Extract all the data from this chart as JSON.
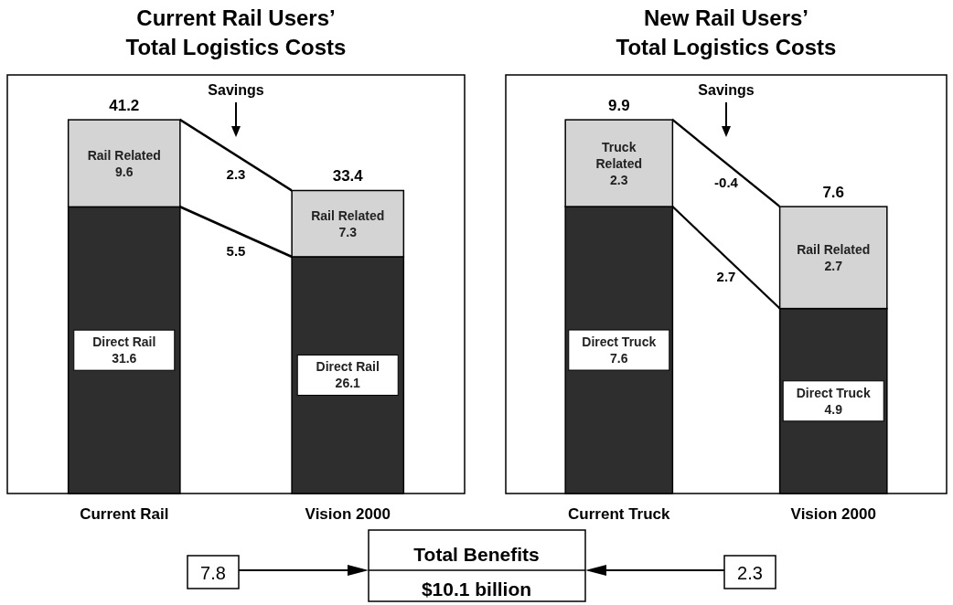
{
  "chart_data": [
    {
      "type": "bar",
      "stacked": true,
      "data_labels": true,
      "title": "Current Rail Users’\nTotal Logistics Costs",
      "categories": [
        "Current Rail",
        "Vision 2000"
      ],
      "series": [
        {
          "name": "Direct Rail",
          "color": "#2e2e2e",
          "values": [
            31.6,
            26.1
          ]
        },
        {
          "name": "Rail Related",
          "color": "#d4d4d4",
          "values": [
            9.6,
            7.3
          ]
        }
      ],
      "totals": [
        "41.2",
        "33.4"
      ],
      "annotations": [
        "Savings",
        "2.3",
        "5.5"
      ]
    },
    {
      "type": "bar",
      "stacked": true,
      "data_labels": true,
      "title": "New Rail Users’\nTotal Logistics Costs",
      "categories": [
        "Current Truck",
        "Vision 2000"
      ],
      "series": [
        {
          "name": "Direct Truck",
          "color": "#2e2e2e",
          "values": [
            7.6,
            4.9
          ]
        },
        {
          "name": "Truck Related",
          "color": "#d4d4d4",
          "values": [
            2.3,
            null
          ]
        },
        {
          "name": "Rail Related",
          "color": "#d4d4d4",
          "values": [
            null,
            2.7
          ]
        }
      ],
      "totals": [
        "9.9",
        "7.6"
      ],
      "annotations": [
        "Savings",
        "-0.4",
        "2.7"
      ]
    },
    {
      "type": "other",
      "annotations": [
        "7.8",
        "Total Benefits",
        "$10.1 billion",
        "2.3"
      ]
    }
  ]
}
